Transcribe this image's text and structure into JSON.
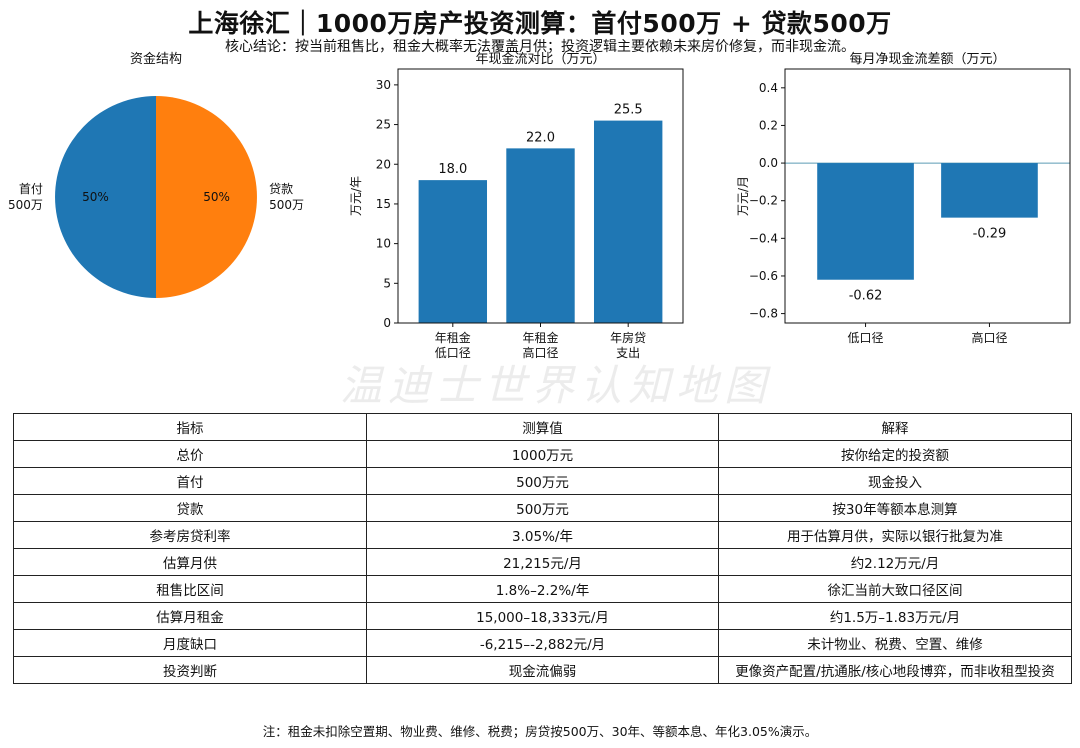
{
  "header": {
    "title": "上海徐汇｜1000万房产投资测算：首付500万 + 贷款500万",
    "subtitle": "核心结论：按当前租售比，租金大概率无法覆盖月供；投资逻辑主要依赖未来房价修复，而非现金流。"
  },
  "watermark": "温迪士世界认知地图",
  "chart_data": [
    {
      "type": "pie",
      "title": "资金结构",
      "labels": [
        "首付\n500万",
        "贷款\n500万"
      ],
      "values": [
        50,
        50
      ],
      "pct_labels": [
        "50%",
        "50%"
      ],
      "colors": [
        "#1f77b4",
        "#ff7f0e"
      ]
    },
    {
      "type": "bar",
      "title": "年现金流对比（万元）",
      "ylabel": "万元/年",
      "categories": [
        "年租金\n低口径",
        "年租金\n高口径",
        "年房贷\n支出"
      ],
      "values": [
        18.0,
        22.0,
        25.5
      ],
      "value_labels": [
        "18.0",
        "22.0",
        "25.5"
      ],
      "ylim": [
        0,
        32
      ],
      "yticks": [
        0,
        5,
        10,
        15,
        20,
        25,
        30
      ],
      "color": "#1f77b4"
    },
    {
      "type": "bar",
      "title": "每月净现金流差额（万元）",
      "ylabel": "万元/月",
      "categories": [
        "低口径",
        "高口径"
      ],
      "values": [
        -0.62,
        -0.29
      ],
      "value_labels": [
        "-0.62",
        "-0.29"
      ],
      "ylim": [
        -0.85,
        0.5
      ],
      "yticks": [
        -0.8,
        -0.6,
        -0.4,
        -0.2,
        0.0,
        0.2,
        0.4
      ],
      "ytick_labels": [
        "−0.8",
        "−0.6",
        "−0.4",
        "−0.2",
        "0.0",
        "0.2",
        "0.4"
      ],
      "color": "#1f77b4",
      "zero_line_color": "#5b9bb5"
    }
  ],
  "table": {
    "headers": [
      "指标",
      "测算值",
      "解释"
    ],
    "rows": [
      [
        "总价",
        "1000万元",
        "按你给定的投资额"
      ],
      [
        "首付",
        "500万元",
        "现金投入"
      ],
      [
        "贷款",
        "500万元",
        "按30年等额本息测算"
      ],
      [
        "参考房贷利率",
        "3.05%/年",
        "用于估算月供，实际以银行批复为准"
      ],
      [
        "估算月供",
        "21,215元/月",
        "约2.12万元/月"
      ],
      [
        "租售比区间",
        "1.8%–2.2%/年",
        "徐汇当前大致口径区间"
      ],
      [
        "估算月租金",
        "15,000–18,333元/月",
        "约1.5万–1.83万元/月"
      ],
      [
        "月度缺口",
        "-6,215–-2,882元/月",
        "未计物业、税费、空置、维修"
      ],
      [
        "投资判断",
        "现金流偏弱",
        "更像资产配置/抗通胀/核心地段博弈，而非收租型投资"
      ]
    ]
  },
  "note": "注：租金未扣除空置期、物业费、维修、税费；房贷按500万、30年、等额本息、年化3.05%演示。"
}
